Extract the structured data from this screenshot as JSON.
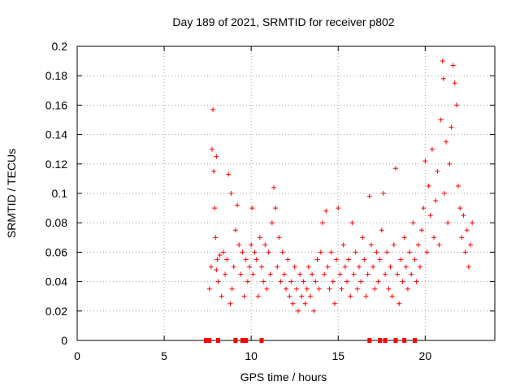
{
  "chart_data": {
    "type": "scatter",
    "title": "Day 189 of 2021, SRMTID for receiver p802",
    "xlabel": "GPS time / hours",
    "ylabel": "SRMTID / TECUs",
    "xlim": [
      0,
      24
    ],
    "ylim": [
      0,
      0.2
    ],
    "xticks": [
      0,
      5,
      10,
      15,
      20
    ],
    "xtick_labels": [
      "0",
      "5",
      "10",
      "15",
      "20"
    ],
    "yticks": [
      0,
      0.02,
      0.04,
      0.06,
      0.08,
      0.1,
      0.12,
      0.14,
      0.16,
      0.18,
      0.2
    ],
    "ytick_labels": [
      "0",
      "0.02",
      "0.04",
      "0.06",
      "0.08",
      "0.1",
      "0.12",
      "0.14",
      "0.16",
      "0.18",
      "0.2"
    ],
    "grid": true,
    "marker": "plus",
    "color": "#ff0000",
    "series": [
      {
        "name": "SRMTID",
        "points": [
          [
            7.6,
            0.035
          ],
          [
            7.7,
            0.05
          ],
          [
            7.75,
            0.13
          ],
          [
            7.8,
            0.157
          ],
          [
            7.85,
            0.115
          ],
          [
            7.9,
            0.09
          ],
          [
            7.95,
            0.07
          ],
          [
            8.0,
            0.048
          ],
          [
            8.0,
            0.125
          ],
          [
            8.05,
            0.055
          ],
          [
            8.1,
            0.04
          ],
          [
            8.2,
            0.058
          ],
          [
            8.3,
            0.03
          ],
          [
            8.4,
            0.06
          ],
          [
            8.5,
            0.045
          ],
          [
            8.6,
            0.055
          ],
          [
            8.7,
            0.113
          ],
          [
            8.8,
            0.025
          ],
          [
            8.85,
            0.1
          ],
          [
            8.9,
            0.035
          ],
          [
            9.0,
            0.05
          ],
          [
            9.1,
            0.075
          ],
          [
            9.2,
            0.092
          ],
          [
            9.3,
            0.065
          ],
          [
            9.4,
            0.045
          ],
          [
            9.5,
            0.06
          ],
          [
            9.6,
            0.03
          ],
          [
            9.7,
            0.055
          ],
          [
            9.8,
            0.04
          ],
          [
            9.9,
            0.05
          ],
          [
            10.0,
            0.065
          ],
          [
            10.05,
            0.09
          ],
          [
            10.1,
            0.045
          ],
          [
            10.2,
            0.06
          ],
          [
            10.3,
            0.055
          ],
          [
            10.4,
            0.03
          ],
          [
            10.5,
            0.07
          ],
          [
            10.6,
            0.05
          ],
          [
            10.7,
            0.04
          ],
          [
            10.8,
            0.065
          ],
          [
            10.9,
            0.035
          ],
          [
            11.0,
            0.06
          ],
          [
            11.1,
            0.045
          ],
          [
            11.2,
            0.08
          ],
          [
            11.3,
            0.104
          ],
          [
            11.4,
            0.09
          ],
          [
            11.5,
            0.05
          ],
          [
            11.6,
            0.07
          ],
          [
            11.7,
            0.04
          ],
          [
            11.8,
            0.06
          ],
          [
            11.9,
            0.045
          ],
          [
            12.0,
            0.035
          ],
          [
            12.1,
            0.055
          ],
          [
            12.2,
            0.03
          ],
          [
            12.3,
            0.04
          ],
          [
            12.4,
            0.025
          ],
          [
            12.5,
            0.05
          ],
          [
            12.6,
            0.035
          ],
          [
            12.7,
            0.02
          ],
          [
            12.8,
            0.045
          ],
          [
            12.9,
            0.03
          ],
          [
            13.0,
            0.04
          ],
          [
            13.1,
            0.025
          ],
          [
            13.2,
            0.035
          ],
          [
            13.3,
            0.05
          ],
          [
            13.4,
            0.03
          ],
          [
            13.5,
            0.045
          ],
          [
            13.6,
            0.02
          ],
          [
            13.7,
            0.04
          ],
          [
            13.8,
            0.055
          ],
          [
            13.9,
            0.035
          ],
          [
            14.0,
            0.06
          ],
          [
            14.1,
            0.08
          ],
          [
            14.2,
            0.045
          ],
          [
            14.3,
            0.088
          ],
          [
            14.4,
            0.05
          ],
          [
            14.5,
            0.035
          ],
          [
            14.6,
            0.06
          ],
          [
            14.7,
            0.04
          ],
          [
            14.8,
            0.025
          ],
          [
            14.9,
            0.055
          ],
          [
            15.0,
            0.09
          ],
          [
            15.1,
            0.045
          ],
          [
            15.2,
            0.035
          ],
          [
            15.3,
            0.065
          ],
          [
            15.4,
            0.05
          ],
          [
            15.5,
            0.04
          ],
          [
            15.6,
            0.055
          ],
          [
            15.7,
            0.03
          ],
          [
            15.8,
            0.08
          ],
          [
            15.9,
            0.045
          ],
          [
            16.0,
            0.06
          ],
          [
            16.1,
            0.035
          ],
          [
            16.2,
            0.05
          ],
          [
            16.3,
            0.04
          ],
          [
            16.4,
            0.07
          ],
          [
            16.5,
            0.055
          ],
          [
            16.6,
            0.03
          ],
          [
            16.7,
            0.045
          ],
          [
            16.8,
            0.098
          ],
          [
            16.9,
            0.065
          ],
          [
            17.0,
            0.05
          ],
          [
            17.1,
            0.035
          ],
          [
            17.2,
            0.06
          ],
          [
            17.3,
            0.04
          ],
          [
            17.4,
            0.055
          ],
          [
            17.5,
            0.075
          ],
          [
            17.6,
            0.1
          ],
          [
            17.7,
            0.045
          ],
          [
            17.8,
            0.06
          ],
          [
            17.9,
            0.035
          ],
          [
            18.0,
            0.05
          ],
          [
            18.1,
            0.03
          ],
          [
            18.2,
            0.065
          ],
          [
            18.3,
            0.117
          ],
          [
            18.4,
            0.045
          ],
          [
            18.5,
            0.025
          ],
          [
            18.6,
            0.055
          ],
          [
            18.7,
            0.04
          ],
          [
            18.8,
            0.07
          ],
          [
            18.9,
            0.05
          ],
          [
            19.0,
            0.035
          ],
          [
            19.1,
            0.06
          ],
          [
            19.2,
            0.045
          ],
          [
            19.3,
            0.08
          ],
          [
            19.4,
            0.055
          ],
          [
            19.5,
            0.04
          ],
          [
            19.6,
            0.065
          ],
          [
            19.7,
            0.05
          ],
          [
            19.8,
            0.075
          ],
          [
            19.9,
            0.09
          ],
          [
            20.0,
            0.122
          ],
          [
            20.1,
            0.06
          ],
          [
            20.2,
            0.105
          ],
          [
            20.3,
            0.085
          ],
          [
            20.4,
            0.13
          ],
          [
            20.5,
            0.07
          ],
          [
            20.6,
            0.095
          ],
          [
            20.7,
            0.115
          ],
          [
            20.8,
            0.065
          ],
          [
            20.9,
            0.15
          ],
          [
            21.0,
            0.19
          ],
          [
            21.05,
            0.178
          ],
          [
            21.1,
            0.1
          ],
          [
            21.2,
            0.135
          ],
          [
            21.3,
            0.08
          ],
          [
            21.4,
            0.12
          ],
          [
            21.5,
            0.145
          ],
          [
            21.6,
            0.187
          ],
          [
            21.7,
            0.175
          ],
          [
            21.8,
            0.16
          ],
          [
            21.9,
            0.105
          ],
          [
            22.0,
            0.09
          ],
          [
            22.1,
            0.07
          ],
          [
            22.2,
            0.085
          ],
          [
            22.3,
            0.06
          ],
          [
            22.4,
            0.075
          ],
          [
            22.5,
            0.05
          ],
          [
            22.6,
            0.065
          ],
          [
            22.7,
            0.08
          ]
        ]
      }
    ],
    "bottom_markers": [
      7.4,
      7.6,
      8.1,
      9.1,
      9.5,
      9.7,
      10.6,
      16.8,
      17.4,
      17.7,
      18.3,
      18.8,
      19.4
    ]
  }
}
